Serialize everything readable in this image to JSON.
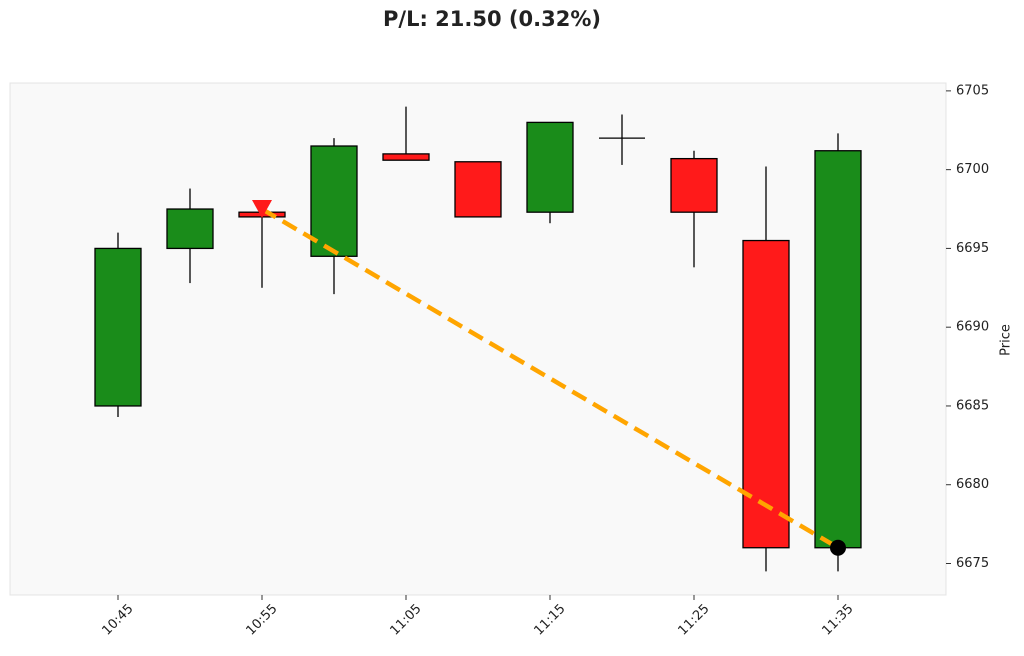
{
  "chart_data": {
    "type": "candlestick",
    "title": "P/L: 21.50 (0.32%)",
    "y_label": "Price",
    "categories": [
      "10:45",
      null,
      "10:55",
      null,
      "11:05",
      null,
      "11:15",
      null,
      "11:25",
      null,
      "11:35"
    ],
    "open": [
      6685.0,
      6695.0,
      6697.3,
      6694.5,
      6701.0,
      6700.5,
      6697.3,
      6702.0,
      6700.7,
      6695.5,
      6676.0
    ],
    "high": [
      6696.0,
      6698.8,
      6697.5,
      6702.0,
      6704.0,
      6700.5,
      6703.0,
      6703.5,
      6701.2,
      6700.2,
      6702.3
    ],
    "low": [
      6684.3,
      6692.8,
      6692.5,
      6692.1,
      6700.6,
      6697.0,
      6696.6,
      6700.3,
      6693.8,
      6674.5,
      6674.5
    ],
    "close": [
      6695.0,
      6697.5,
      6697.0,
      6701.5,
      6700.6,
      6697.0,
      6703.0,
      6702.0,
      6697.3,
      6676.0,
      6701.2
    ],
    "up_color": "#1a8c1a",
    "down_color": "#ff1a1a",
    "trade": {
      "entry_category": "10:55",
      "entry": 6697.5,
      "exit_category": "11:35",
      "exit": 6676.0,
      "color": "#ffa500"
    },
    "ylim": [
      6673.0,
      6705.5
    ],
    "yticks": [
      6675,
      6680,
      6685,
      6690,
      6695,
      6700,
      6705
    ]
  }
}
